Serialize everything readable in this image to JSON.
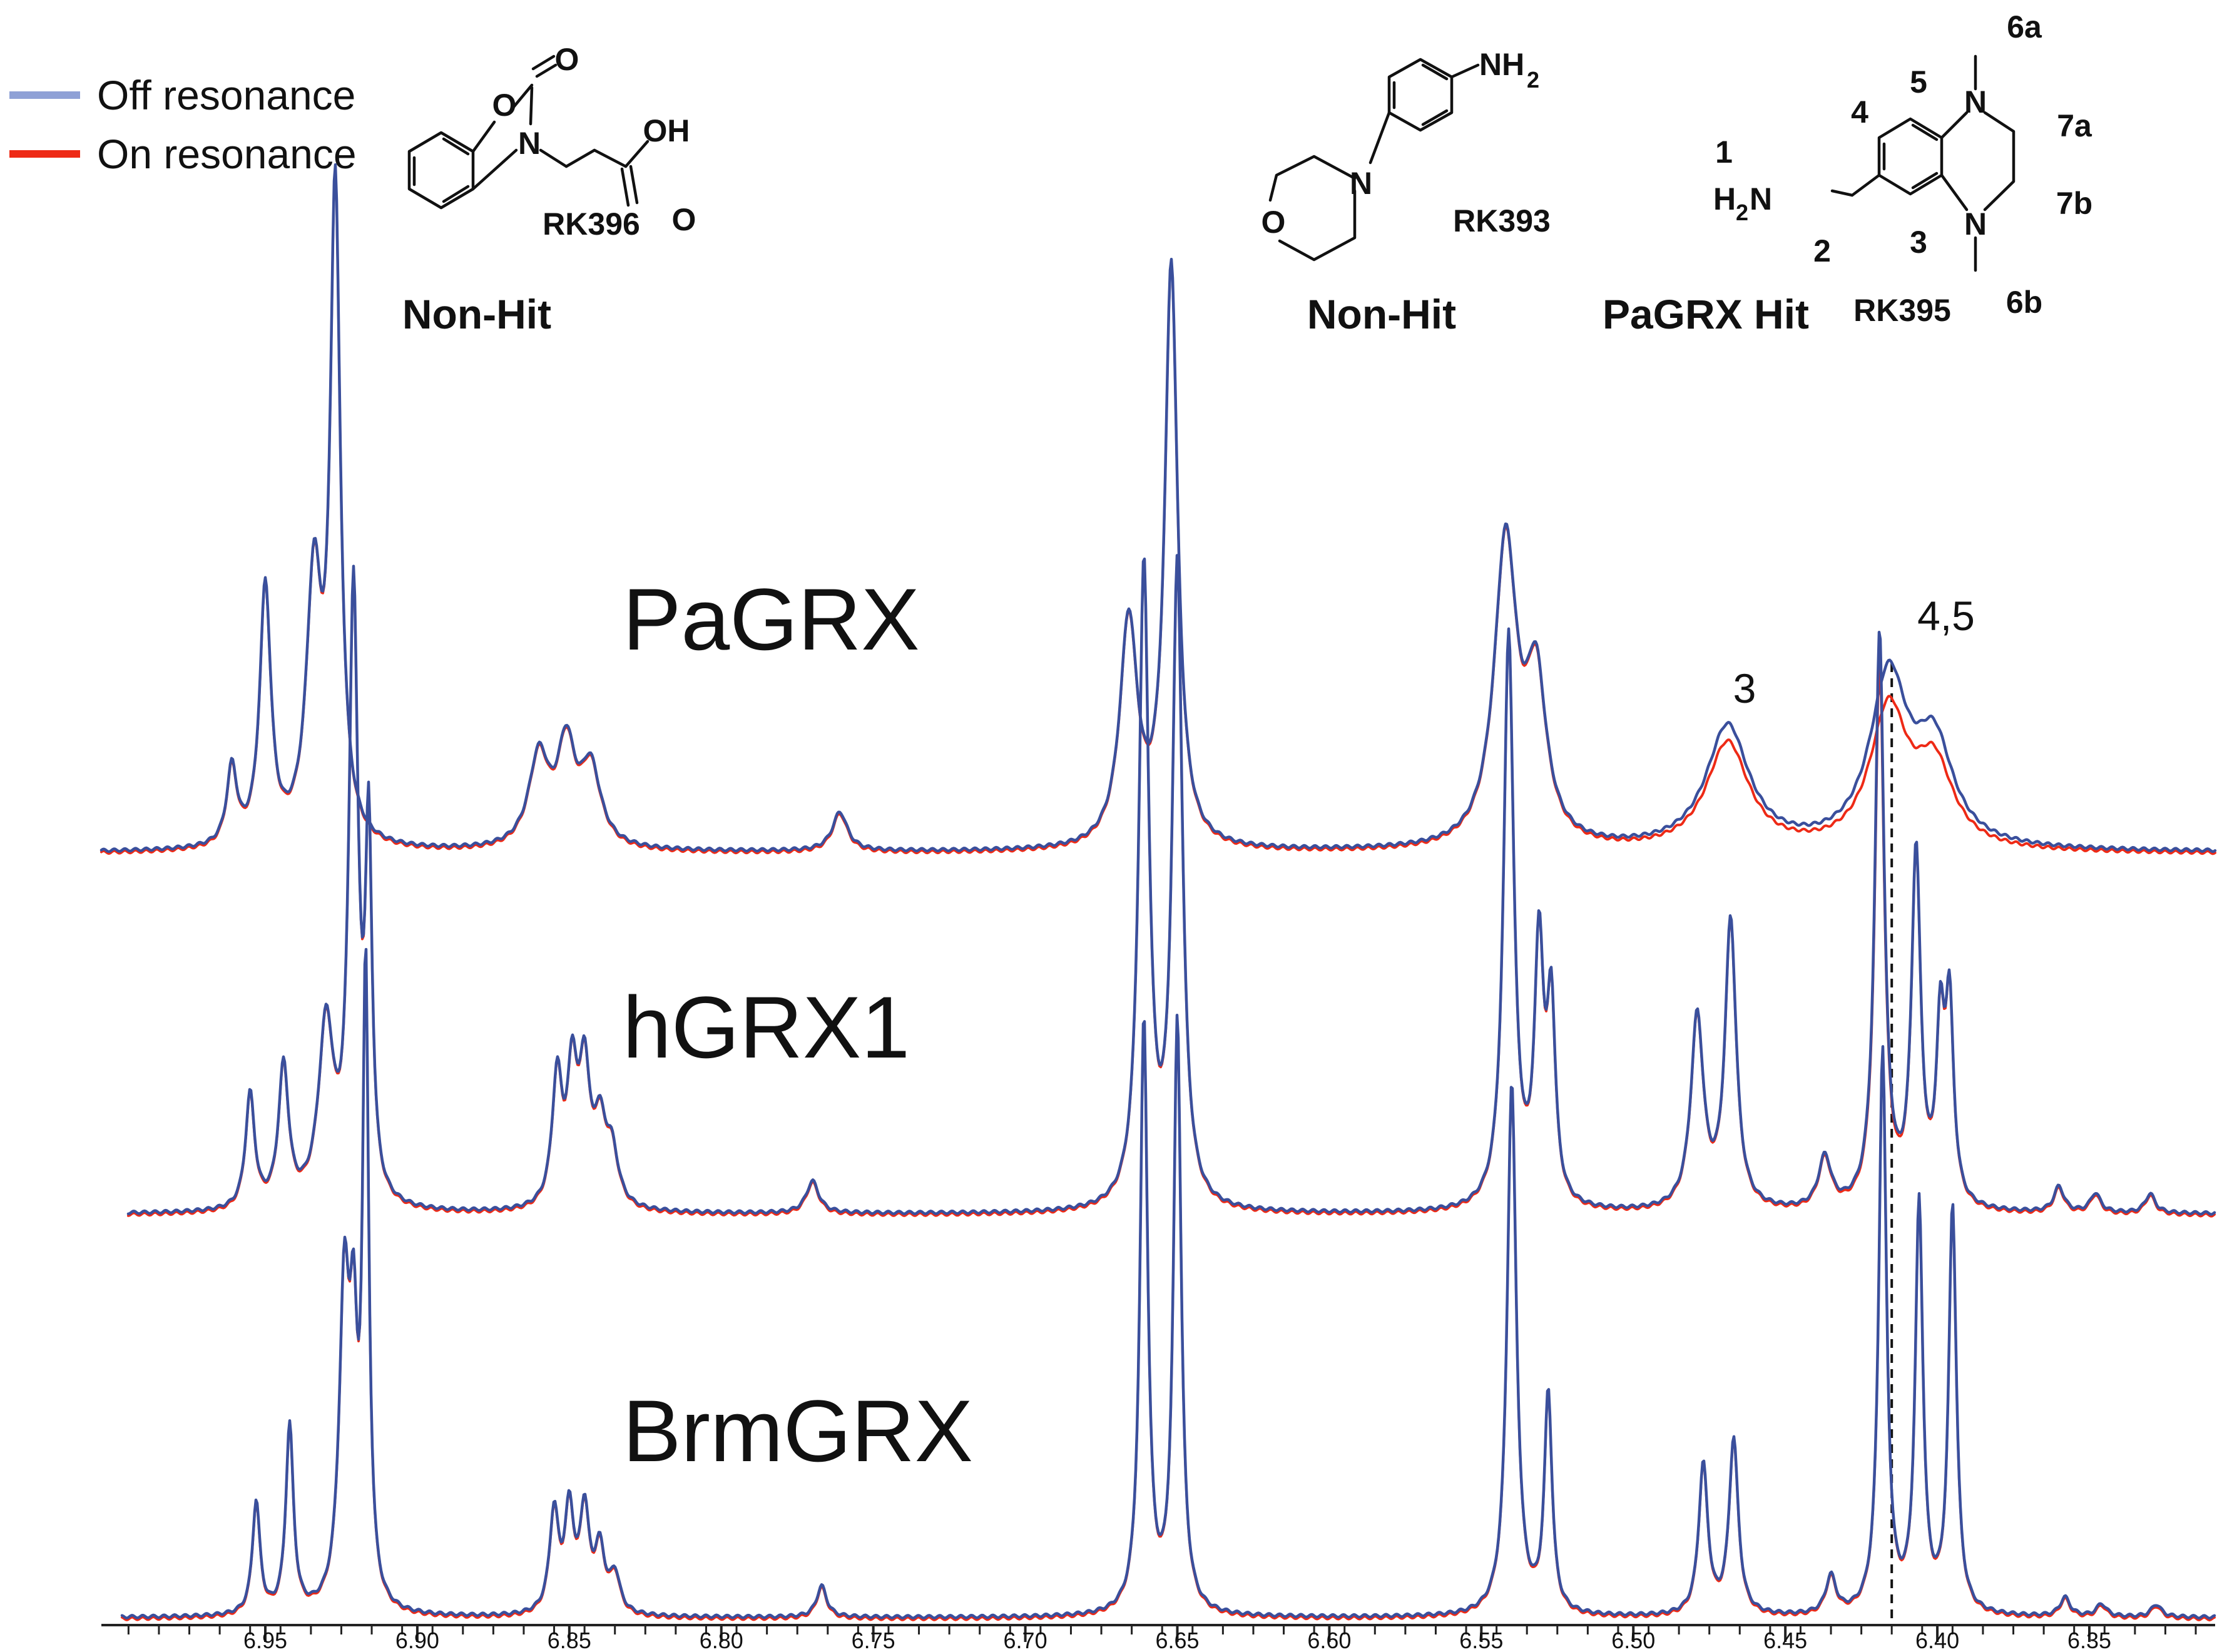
{
  "legend": [
    {
      "label": "Off resonance",
      "color": "#8fa1d6"
    },
    {
      "label": "On resonance",
      "color": "#ee2a16"
    }
  ],
  "compounds": [
    {
      "id": "RK396",
      "status": "Non-Hit"
    },
    {
      "id": "RK393",
      "status": "Non-Hit"
    },
    {
      "id": "RK395",
      "status": "PaGRX Hit"
    }
  ],
  "molecule_atoms": {
    "rk396": {
      "o_ring": "O",
      "o_carbonyl": "O",
      "n": "N",
      "oh": "OH",
      "o_acid": "O"
    },
    "rk393": {
      "nh2": "NH",
      "nh2_sub": "2",
      "n": "N",
      "o": "O"
    },
    "rk395": {
      "h2n_h": "H",
      "h2n_sub": "2",
      "h2n_n": "N",
      "n_top": "N",
      "n_bottom": "N"
    }
  },
  "atom_numbers": [
    "1",
    "2",
    "3",
    "4",
    "5",
    "6a",
    "7a",
    "7b",
    "6b"
  ],
  "peak_annotations": [
    "3",
    "4,5"
  ],
  "chart_data": {
    "type": "line",
    "x_axis": {
      "range": [
        6.995,
        6.315
      ],
      "reversed": true,
      "ticks": [
        6.95,
        6.9,
        6.85,
        6.8,
        6.75,
        6.7,
        6.65,
        6.6,
        6.55,
        6.5,
        6.45,
        6.4,
        6.35
      ],
      "tick_labels": [
        "6.95",
        "6.90",
        "6.85",
        "6.80",
        "6.75",
        "6.70",
        "6.65",
        "6.60",
        "6.55",
        "6.50",
        "6.45",
        "6.40",
        "6.35"
      ]
    },
    "reference_line_ppm": 6.415,
    "series_colors": {
      "off_resonance": "#8fa1d6",
      "on_resonance": "#ee2a16",
      "overlay": "#3a4f9c"
    },
    "spectra": [
      {
        "name": "PaGRX",
        "peaks": [
          [
            6.961,
            0.12,
            0.002
          ],
          [
            6.95,
            0.4,
            0.0022
          ],
          [
            6.934,
            0.4,
            0.003
          ],
          [
            6.927,
            1.0,
            0.002
          ],
          [
            6.86,
            0.14,
            0.004
          ],
          [
            6.851,
            0.15,
            0.0035
          ],
          [
            6.843,
            0.12,
            0.004
          ],
          [
            6.761,
            0.06,
            0.003
          ],
          [
            6.666,
            0.35,
            0.0035
          ],
          [
            6.652,
            0.9,
            0.0025
          ],
          [
            6.542,
            0.47,
            0.0045
          ],
          [
            6.532,
            0.24,
            0.004
          ],
          [
            6.469,
            0.19,
            0.0085
          ],
          [
            6.416,
            0.26,
            0.0075
          ],
          [
            6.401,
            0.15,
            0.0075
          ]
        ],
        "on_resonance_scale": [
          [
            6.469,
            0.12
          ],
          [
            6.416,
            0.18
          ],
          [
            6.401,
            0.18
          ]
        ]
      },
      {
        "name": "hGRX1",
        "peaks": [
          [
            6.955,
            0.18,
            0.0018
          ],
          [
            6.944,
            0.22,
            0.002
          ],
          [
            6.93,
            0.28,
            0.003
          ],
          [
            6.921,
            0.95,
            0.0018
          ],
          [
            6.916,
            0.55,
            0.0013
          ],
          [
            6.854,
            0.2,
            0.002
          ],
          [
            6.849,
            0.2,
            0.002
          ],
          [
            6.845,
            0.2,
            0.002
          ],
          [
            6.84,
            0.12,
            0.0025
          ],
          [
            6.836,
            0.08,
            0.0025
          ],
          [
            6.77,
            0.05,
            0.0025
          ],
          [
            6.661,
            1.0,
            0.002
          ],
          [
            6.65,
            1.0,
            0.002
          ],
          [
            6.541,
            0.9,
            0.002
          ],
          [
            6.531,
            0.4,
            0.0018
          ],
          [
            6.527,
            0.3,
            0.0016
          ],
          [
            6.479,
            0.3,
            0.0025
          ],
          [
            6.468,
            0.45,
            0.0022
          ],
          [
            6.437,
            0.08,
            0.0025
          ],
          [
            6.419,
            0.9,
            0.0018
          ],
          [
            6.407,
            0.55,
            0.0018
          ],
          [
            6.399,
            0.26,
            0.0016
          ],
          [
            6.396,
            0.3,
            0.0016
          ],
          [
            6.36,
            0.04,
            0.002
          ],
          [
            6.348,
            0.03,
            0.002
          ],
          [
            6.33,
            0.03,
            0.002
          ]
        ],
        "on_resonance_scale": [
          [
            6.419,
            0.04
          ]
        ]
      },
      {
        "name": "BrmGRX",
        "peaks": [
          [
            6.953,
            0.18,
            0.0015
          ],
          [
            6.942,
            0.3,
            0.0015
          ],
          [
            6.924,
            0.5,
            0.002
          ],
          [
            6.921,
            0.35,
            0.0015
          ],
          [
            6.917,
            1.0,
            0.0012
          ],
          [
            6.855,
            0.16,
            0.0018
          ],
          [
            6.85,
            0.16,
            0.0018
          ],
          [
            6.845,
            0.16,
            0.0018
          ],
          [
            6.84,
            0.1,
            0.002
          ],
          [
            6.835,
            0.06,
            0.002
          ],
          [
            6.767,
            0.05,
            0.002
          ],
          [
            6.661,
            0.95,
            0.0015
          ],
          [
            6.65,
            0.95,
            0.0015
          ],
          [
            6.54,
            0.85,
            0.0018
          ],
          [
            6.528,
            0.35,
            0.0015
          ],
          [
            6.477,
            0.24,
            0.0018
          ],
          [
            6.467,
            0.28,
            0.0018
          ],
          [
            6.435,
            0.06,
            0.002
          ],
          [
            6.418,
            0.9,
            0.0015
          ],
          [
            6.406,
            0.65,
            0.0015
          ],
          [
            6.395,
            0.65,
            0.0015
          ],
          [
            6.358,
            0.03,
            0.002
          ],
          [
            6.346,
            0.02,
            0.002
          ],
          [
            6.328,
            0.02,
            0.002
          ]
        ],
        "on_resonance_scale": []
      }
    ]
  }
}
